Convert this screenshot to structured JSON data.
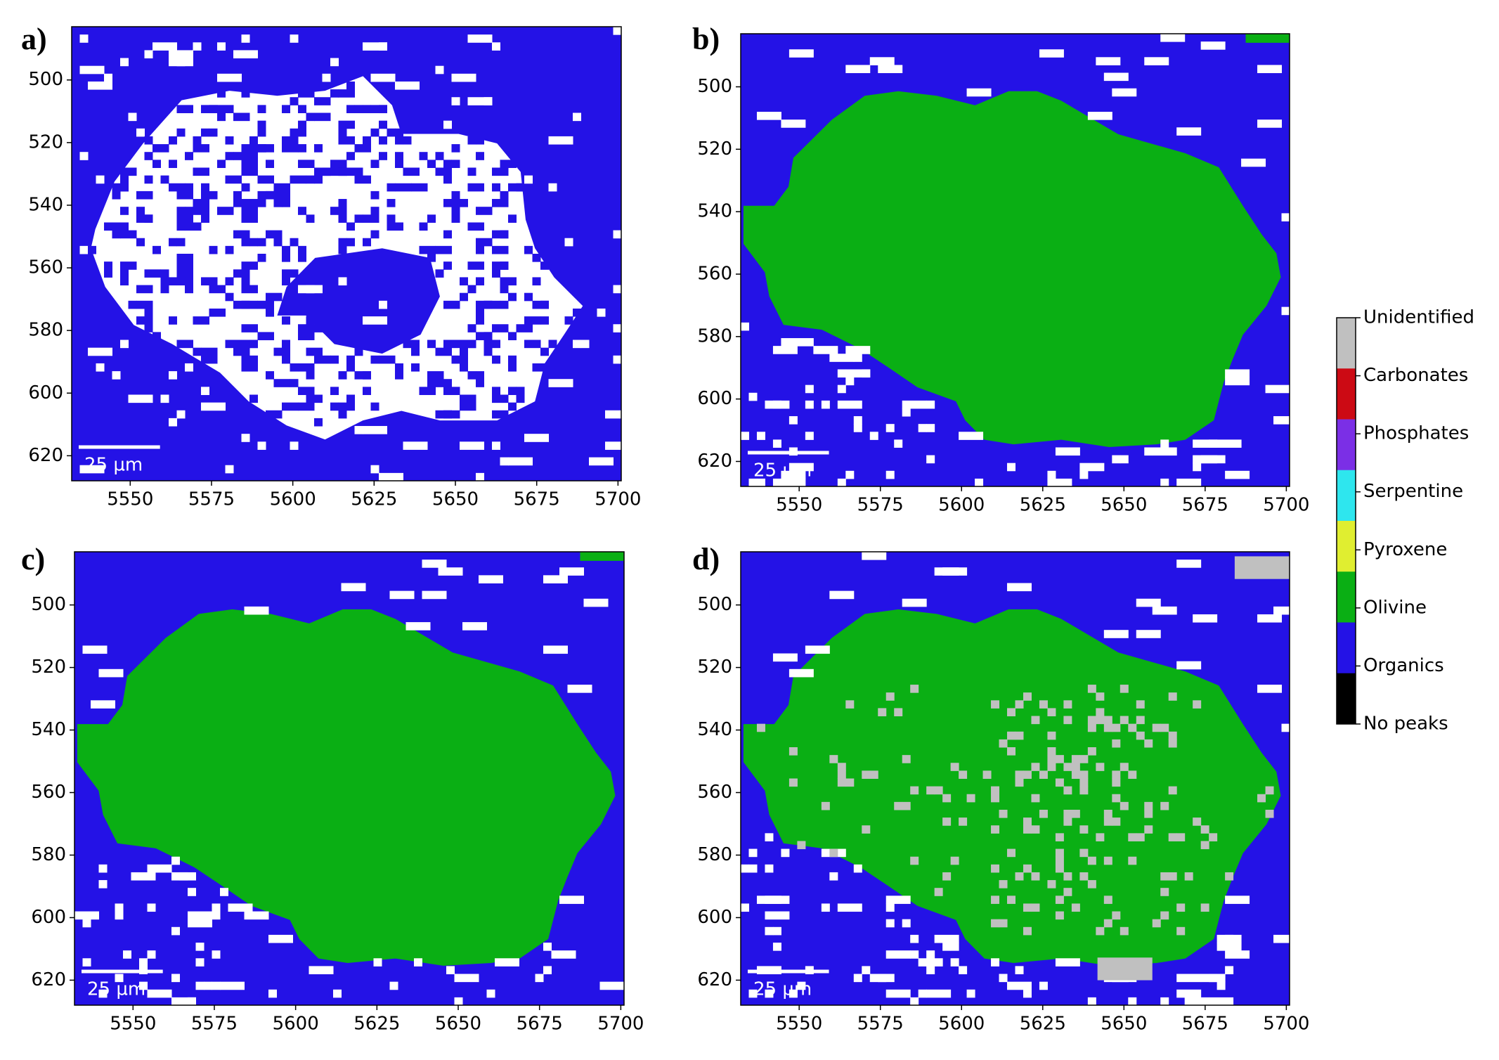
{
  "chart_data": [
    {
      "type": "heatmap",
      "panel_label": "a)",
      "xlim": [
        5532,
        5701
      ],
      "ylim": [
        628,
        483
      ],
      "xticks": [
        5550,
        5575,
        5600,
        5625,
        5650,
        5675,
        5700
      ],
      "yticks": [
        500,
        520,
        540,
        560,
        580,
        600,
        620
      ],
      "scale_bar": {
        "length": 25,
        "label": "25 µm"
      }
    },
    {
      "type": "heatmap",
      "panel_label": "b)",
      "xlim": [
        5532,
        5701
      ],
      "ylim": [
        628,
        483
      ],
      "xticks": [
        5550,
        5575,
        5600,
        5625,
        5650,
        5675,
        5700
      ],
      "yticks": [
        500,
        520,
        540,
        560,
        580,
        600,
        620
      ],
      "scale_bar": {
        "length": 25,
        "label": "25 µm"
      }
    },
    {
      "type": "heatmap",
      "panel_label": "c)",
      "xlim": [
        5532,
        5701
      ],
      "ylim": [
        628,
        483
      ],
      "xticks": [
        5550,
        5575,
        5600,
        5625,
        5650,
        5675,
        5700
      ],
      "yticks": [
        500,
        520,
        540,
        560,
        580,
        600,
        620
      ],
      "scale_bar": {
        "length": 25,
        "label": "25 µm"
      }
    },
    {
      "type": "heatmap",
      "panel_label": "d)",
      "xlim": [
        5532,
        5701
      ],
      "ylim": [
        628,
        483
      ],
      "xticks": [
        5550,
        5575,
        5600,
        5625,
        5650,
        5675,
        5700
      ],
      "yticks": [
        500,
        520,
        540,
        560,
        580,
        600,
        620
      ],
      "scale_bar": {
        "length": 25,
        "label": "25 µm"
      }
    }
  ],
  "colorbar": {
    "labels": [
      "Unidentified",
      "Carbonates",
      "Phosphates",
      "Serpentine",
      "Pyroxene",
      "Olivine",
      "Organics",
      "No peaks"
    ],
    "colors": [
      "#c0c0c0",
      "#cc0a14",
      "#7b2fe6",
      "#2ee6ee",
      "#e0ee30",
      "#0aaf14",
      "#2412e6",
      "#000000"
    ]
  }
}
